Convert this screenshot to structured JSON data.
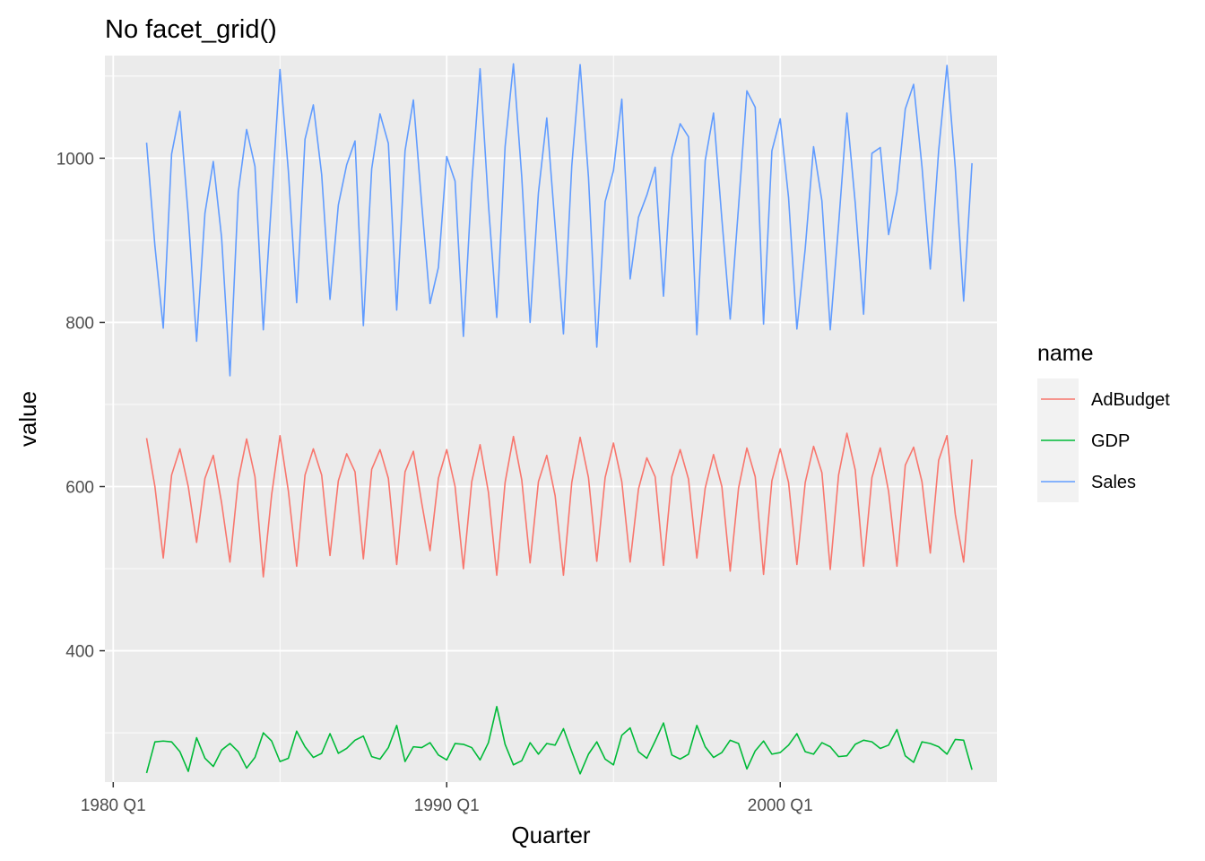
{
  "chart_data": {
    "type": "line",
    "title": "No facet_grid()",
    "xlabel": "Quarter",
    "ylabel": "value",
    "x_start": "1981 Q1",
    "x_frequency": "quarterly",
    "xlim": [
      "1979 Q4",
      "2006 Q3"
    ],
    "ylim": [
      240,
      1125
    ],
    "y_ticks": [
      400,
      600,
      800,
      1000
    ],
    "x_ticks": [
      "1980 Q1",
      "1990 Q1",
      "2000 Q1"
    ],
    "grid": true,
    "legend": {
      "title": "name",
      "position": "right"
    },
    "series": [
      {
        "name": "AdBudget",
        "color": "#F8766D",
        "values": [
          659,
          600,
          513,
          614,
          646,
          600,
          532,
          610,
          638,
          580,
          508,
          608,
          658,
          612,
          490,
          590,
          662,
          595,
          503,
          614,
          646,
          614,
          516,
          607,
          640,
          618,
          512,
          621,
          645,
          610,
          505,
          618,
          643,
          580,
          522,
          610,
          645,
          600,
          500,
          606,
          651,
          593,
          492,
          605,
          661,
          608,
          507,
          606,
          638,
          589,
          492,
          605,
          660,
          611,
          509,
          611,
          653,
          606,
          508,
          597,
          635,
          612,
          504,
          612,
          645,
          609,
          513,
          598,
          639,
          600,
          497,
          598,
          647,
          612,
          493,
          607,
          646,
          605,
          505,
          605,
          649,
          617,
          499,
          614,
          665,
          620,
          503,
          611,
          647,
          594,
          503,
          626,
          648,
          606,
          519,
          632,
          662,
          566,
          508,
          633
        ]
      },
      {
        "name": "GDP",
        "color": "#00BA38",
        "values": [
          251,
          289,
          290,
          289,
          277,
          253,
          294,
          269,
          259,
          279,
          287,
          277,
          257,
          270,
          300,
          290,
          265,
          269,
          302,
          283,
          270,
          275,
          299,
          275,
          281,
          291,
          296,
          271,
          268,
          282,
          309,
          265,
          283,
          282,
          288,
          273,
          267,
          287,
          286,
          282,
          267,
          288,
          332,
          286,
          261,
          266,
          288,
          274,
          287,
          285,
          305,
          277,
          250,
          274,
          289,
          268,
          261,
          297,
          306,
          277,
          269,
          290,
          312,
          273,
          268,
          274,
          309,
          283,
          270,
          276,
          291,
          287,
          256,
          278,
          290,
          274,
          276,
          285,
          299,
          277,
          274,
          288,
          283,
          271,
          272,
          286,
          291,
          289,
          281,
          285,
          304,
          272,
          264,
          289,
          287,
          283,
          274,
          292,
          291,
          255
        ]
      },
      {
        "name": "Sales",
        "color": "#619CFF",
        "values": [
          1019,
          893,
          793,
          1005,
          1057,
          930,
          777,
          933,
          996,
          903,
          735,
          959,
          1035,
          990,
          791,
          950,
          1108,
          985,
          824,
          1023,
          1065,
          980,
          828,
          943,
          992,
          1021,
          796,
          987,
          1054,
          1018,
          815,
          1009,
          1071,
          944,
          823,
          867,
          1002,
          972,
          783,
          969,
          1109,
          944,
          806,
          1014,
          1115,
          977,
          800,
          958,
          1049,
          917,
          786,
          991,
          1114,
          977,
          770,
          947,
          985,
          1072,
          853,
          928,
          955,
          989,
          832,
          1001,
          1042,
          1026,
          785,
          997,
          1055,
          926,
          804,
          941,
          1082,
          1062,
          798,
          1009,
          1048,
          952,
          792,
          890,
          1014,
          948,
          791,
          919,
          1055,
          945,
          810,
          1006,
          1013,
          907,
          959,
          1060,
          1090,
          990,
          865,
          1009,
          1113,
          988,
          826,
          994
        ]
      }
    ]
  }
}
